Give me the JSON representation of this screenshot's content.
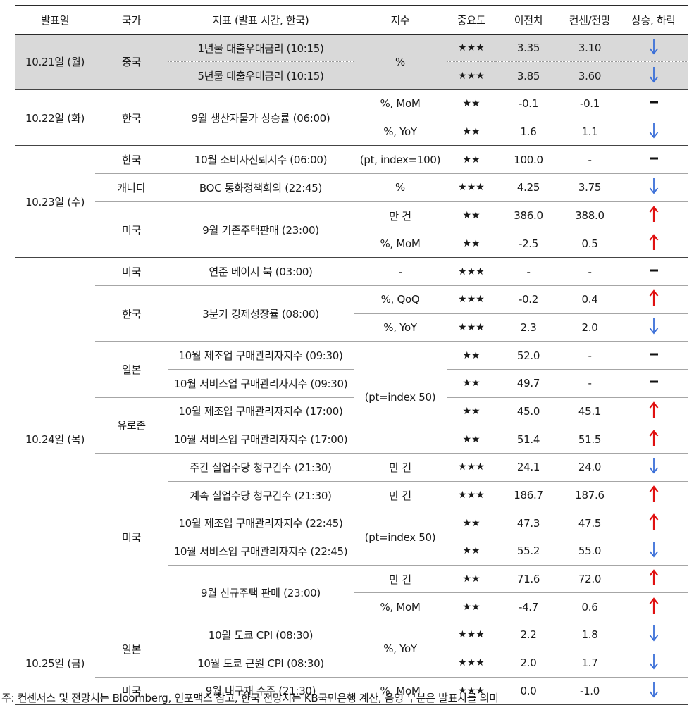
{
  "colors": {
    "down": "#3a6fd8",
    "up": "#e01010",
    "flat": "#111111",
    "shade": "#d9d9d9"
  },
  "header": [
    "발표일",
    "국가",
    "지표 (발표 시간, 한국)",
    "지수",
    "중요도",
    "이전치",
    "컨센/전망",
    "상승, 하락"
  ],
  "groups": [
    {
      "date": "10.21일 (월)",
      "shaded": true,
      "countries": [
        {
          "country": "중국",
          "bold": false,
          "rows": [
            {
              "indicator": "1년물 대출우대금리 (10:15)",
              "bold": true,
              "unit": "%",
              "importance": "★★★",
              "prev": "3.35",
              "cons": "3.10",
              "dir": "down"
            },
            {
              "indicator": "5년물 대출우대금리 (10:15)",
              "bold": true,
              "unit": null,
              "importance": "★★★",
              "prev": "3.85",
              "cons": "3.60",
              "dir": "down"
            }
          ]
        }
      ]
    },
    {
      "date": "10.22일 (화)",
      "shaded": false,
      "countries": [
        {
          "country": "한국",
          "bold": false,
          "rows": [
            {
              "indicator": "9월 생산자물가 상승률 (06:00)",
              "bold": false,
              "unit": "%, MoM",
              "importance": "★★",
              "prev": "-0.1",
              "cons": "-0.1",
              "dir": "flat"
            },
            {
              "indicator": null,
              "bold": false,
              "unit": "%, YoY",
              "importance": "★★",
              "prev": "1.6",
              "cons": "1.1",
              "dir": "down"
            }
          ]
        }
      ]
    },
    {
      "date": "10.23일 (수)",
      "shaded": false,
      "countries": [
        {
          "country": "한국",
          "bold": false,
          "rows": [
            {
              "indicator": "10월 소비자신뢰지수 (06:00)",
              "bold": false,
              "unit": "(pt, index=100)",
              "importance": "★★",
              "prev": "100.0",
              "cons": "-",
              "dir": "flat"
            }
          ]
        },
        {
          "country": "캐나다",
          "bold": false,
          "rows": [
            {
              "indicator": "BOC 통화정책회의 (22:45)",
              "bold": true,
              "unit": "%",
              "importance": "★★★",
              "prev": "4.25",
              "cons": "3.75",
              "dir": "down"
            }
          ]
        },
        {
          "country": "미국",
          "bold": false,
          "rows": [
            {
              "indicator": "9월 기존주택판매 (23:00)",
              "bold": false,
              "unit": "만 건",
              "importance": "★★",
              "prev": "386.0",
              "cons": "388.0",
              "dir": "up"
            },
            {
              "indicator": null,
              "bold": false,
              "unit": "%, MoM",
              "importance": "★★",
              "prev": "-2.5",
              "cons": "0.5",
              "dir": "up"
            }
          ]
        }
      ]
    },
    {
      "date": "10.24일 (목)",
      "shaded": false,
      "countries": [
        {
          "country": "미국",
          "bold": true,
          "rows": [
            {
              "indicator": "연준 베이지 북 (03:00)",
              "bold": true,
              "unit": "-",
              "importance": "★★★",
              "prev": "-",
              "cons": "-",
              "dir": "flat"
            }
          ]
        },
        {
          "country": "한국",
          "bold": true,
          "rows": [
            {
              "indicator": "3분기 경제성장률 (08:00)",
              "bold": true,
              "unit": "%, QoQ",
              "importance": "★★★",
              "prev": "-0.2",
              "cons": "0.4",
              "dir": "up"
            },
            {
              "indicator": null,
              "bold": false,
              "unit": "%, YoY",
              "importance": "★★★",
              "prev": "2.3",
              "cons": "2.0",
              "dir": "down"
            }
          ]
        },
        {
          "country": "일본",
          "bold": false,
          "rows": [
            {
              "indicator": "10월 제조업 구매관리자지수 (09:30)",
              "bold": false,
              "unit": "(pt=index 50)",
              "importance": "★★",
              "prev": "52.0",
              "cons": "-",
              "dir": "flat"
            },
            {
              "indicator": "10월 서비스업 구매관리자지수 (09:30)",
              "bold": false,
              "unit": null,
              "importance": "★★",
              "prev": "49.7",
              "cons": "-",
              "dir": "flat"
            }
          ]
        },
        {
          "country": "유로존",
          "bold": false,
          "rows": [
            {
              "indicator": "10월 제조업 구매관리자지수 (17:00)",
              "bold": false,
              "unit": null,
              "importance": "★★",
              "prev": "45.0",
              "cons": "45.1",
              "dir": "up"
            },
            {
              "indicator": "10월 서비스업 구매관리자지수 (17:00)",
              "bold": false,
              "unit": null,
              "importance": "★★",
              "prev": "51.4",
              "cons": "51.5",
              "dir": "up"
            }
          ]
        },
        {
          "country": "미국",
          "bold": false,
          "rows": [
            {
              "indicator": "주간 실업수당 청구건수 (21:30)",
              "bold": false,
              "unit": "만 건",
              "importance": "★★★",
              "prev": "24.1",
              "cons": "24.0",
              "dir": "down"
            },
            {
              "indicator": "계속 실업수당 청구건수 (21:30)",
              "bold": false,
              "unit": "만 건",
              "importance": "★★★",
              "prev": "186.7",
              "cons": "187.6",
              "dir": "up"
            },
            {
              "indicator": "10월 제조업 구매관리자지수 (22:45)",
              "bold": false,
              "unit": "(pt=index 50)",
              "importance": "★★",
              "prev": "47.3",
              "cons": "47.5",
              "dir": "up"
            },
            {
              "indicator": "10월 서비스업 구매관리자지수 (22:45)",
              "bold": false,
              "unit": null,
              "importance": "★★",
              "prev": "55.2",
              "cons": "55.0",
              "dir": "down"
            },
            {
              "indicator": "9월 신규주택 판매 (23:00)",
              "bold": false,
              "unit": "만 건",
              "importance": "★★",
              "prev": "71.6",
              "cons": "72.0",
              "dir": "up"
            },
            {
              "indicator": null,
              "bold": false,
              "unit": "%, MoM",
              "importance": "★★",
              "prev": "-4.7",
              "cons": "0.6",
              "dir": "up"
            }
          ]
        }
      ]
    },
    {
      "date": "10.25일 (금)",
      "shaded": false,
      "countries": [
        {
          "country": "일본",
          "bold": false,
          "rows": [
            {
              "indicator": "10월 도쿄 CPI (08:30)",
              "bold": false,
              "unit": "%, YoY",
              "importance": "★★★",
              "prev": "2.2",
              "cons": "1.8",
              "dir": "down"
            },
            {
              "indicator": "10월 도쿄 근원 CPI (08:30)",
              "bold": false,
              "unit": null,
              "importance": "★★★",
              "prev": "2.0",
              "cons": "1.7",
              "dir": "down"
            }
          ]
        },
        {
          "country": "미국",
          "bold": false,
          "rows": [
            {
              "indicator": "9월 내구재 수주 (21:30)",
              "bold": false,
              "unit": "%, MoM",
              "importance": "★★★",
              "prev": "0.0",
              "cons": "-1.0",
              "dir": "down"
            }
          ]
        }
      ]
    }
  ],
  "note": "주: 컨센서스 및 전망치는 Bloomberg, 인포맥스 참고, 한국 전망치는 KB국민은행 계산, 음영 부분은 발표치를 의미"
}
